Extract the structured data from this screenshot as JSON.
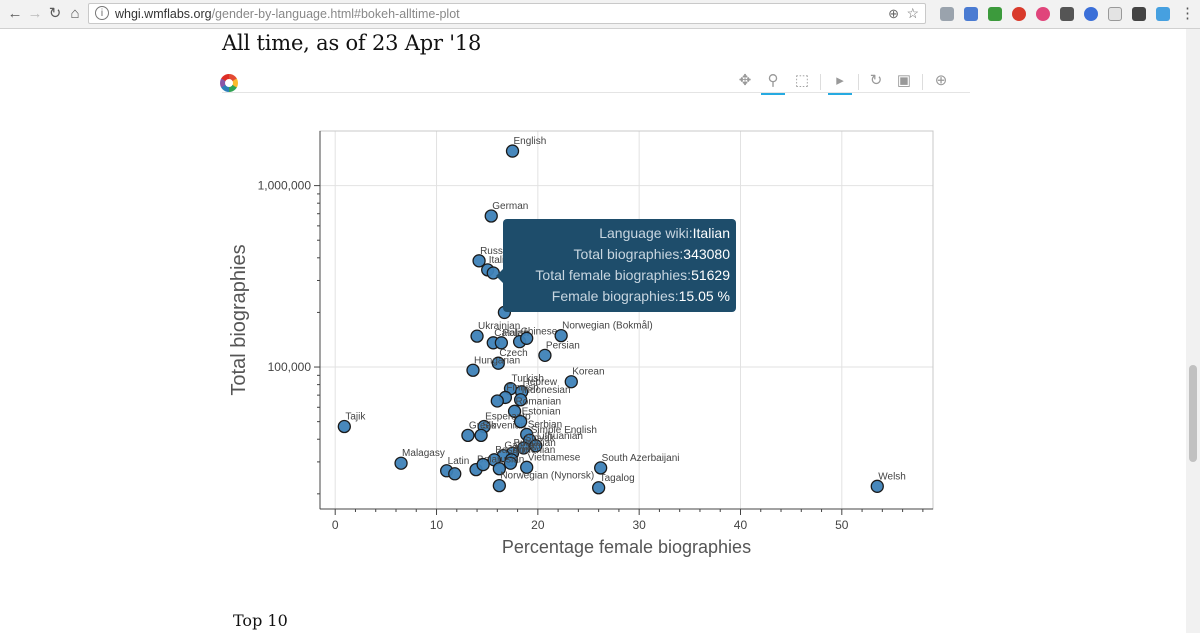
{
  "browser": {
    "url_host": "whgi.wmflabs.org",
    "url_rest": "/gender-by-language.html#bokeh-alltime-plot"
  },
  "page": {
    "title": "All time, as of 23 Apr '18",
    "next_heading": "Top 10"
  },
  "tooltip": {
    "rows": [
      {
        "label": "Language wiki:",
        "value": "Italian"
      },
      {
        "label": "Total biographies:",
        "value": "343080"
      },
      {
        "label": "Total female biographies:",
        "value": "51629"
      },
      {
        "label": "Female biographies:",
        "value": "15.05 %"
      }
    ]
  },
  "chart_data": {
    "type": "scatter",
    "xlabel": "Percentage female biographies",
    "ylabel": "Total biographies",
    "xlim": [
      -1.5,
      59
    ],
    "ylim": [
      16500,
      2000000
    ],
    "y_scale": "log",
    "x_ticks": [
      0,
      10,
      20,
      30,
      40,
      50
    ],
    "y_ticks": [
      100000,
      1000000
    ],
    "y_tick_labels": [
      "100,000",
      "1,000,000"
    ],
    "grid": true,
    "point_color": "#3e82b8",
    "points": [
      {
        "label": "English",
        "x": 17.5,
        "y": 1550000
      },
      {
        "label": "German",
        "x": 15.4,
        "y": 680000
      },
      {
        "label": "Russian",
        "x": 14.2,
        "y": 385000
      },
      {
        "label": "Italian",
        "x": 15.05,
        "y": 343080
      },
      {
        "label": "",
        "x": 15.6,
        "y": 330000
      },
      {
        "label": "",
        "x": 16.7,
        "y": 200000
      },
      {
        "label": "Ukrainian",
        "x": 14.0,
        "y": 148000
      },
      {
        "label": "Catalan",
        "x": 15.6,
        "y": 136000
      },
      {
        "label": "Polish",
        "x": 16.4,
        "y": 136000
      },
      {
        "label": "Chinese",
        "x": 18.2,
        "y": 138000
      },
      {
        "label": "",
        "x": 18.9,
        "y": 144000
      },
      {
        "label": "Norwegian (Bokmål)",
        "x": 22.3,
        "y": 149000
      },
      {
        "label": "Persian",
        "x": 20.7,
        "y": 116000
      },
      {
        "label": "Czech",
        "x": 16.1,
        "y": 105000
      },
      {
        "label": "Hungarian",
        "x": 13.6,
        "y": 96000
      },
      {
        "label": "Korean",
        "x": 23.3,
        "y": 83000
      },
      {
        "label": "Turkish",
        "x": 17.3,
        "y": 76000
      },
      {
        "label": "Hebrew",
        "x": 18.4,
        "y": 73000
      },
      {
        "label": "Finnish",
        "x": 16.8,
        "y": 68000
      },
      {
        "label": "",
        "x": 16.0,
        "y": 65000
      },
      {
        "label": "Indonesian",
        "x": 18.3,
        "y": 66000
      },
      {
        "label": "Romanian",
        "x": 17.7,
        "y": 57000
      },
      {
        "label": "Esperanto",
        "x": 14.7,
        "y": 47000
      },
      {
        "label": "Slovenian",
        "x": 14.4,
        "y": 42000
      },
      {
        "label": "Greek",
        "x": 13.1,
        "y": 42000
      },
      {
        "label": "Estonian",
        "x": 18.3,
        "y": 50000
      },
      {
        "label": "Serbian",
        "x": 18.9,
        "y": 42500
      },
      {
        "label": "Simple English",
        "x": 19.2,
        "y": 39500
      },
      {
        "label": "Lithuanian",
        "x": 19.8,
        "y": 36800
      },
      {
        "label": "Slovak",
        "x": 18.6,
        "y": 35800
      },
      {
        "label": "Bulgarian",
        "x": 17.5,
        "y": 33500
      },
      {
        "label": "Galician",
        "x": 16.6,
        "y": 32500
      },
      {
        "label": "Armenian",
        "x": 17.4,
        "y": 30800
      },
      {
        "label": "Basque",
        "x": 15.7,
        "y": 30800
      },
      {
        "label": "Vietnamese",
        "x": 18.9,
        "y": 28000
      },
      {
        "label": "",
        "x": 17.3,
        "y": 29500
      },
      {
        "label": "Belarusian",
        "x": 13.9,
        "y": 27200
      },
      {
        "label": "",
        "x": 14.6,
        "y": 29000
      },
      {
        "label": "",
        "x": 16.2,
        "y": 27500
      },
      {
        "label": "Latin",
        "x": 11.0,
        "y": 26800
      },
      {
        "label": "",
        "x": 11.8,
        "y": 25800
      },
      {
        "label": "Malagasy",
        "x": 6.5,
        "y": 29500
      },
      {
        "label": "Tajik",
        "x": 0.9,
        "y": 47000
      },
      {
        "label": "South Azerbaijani",
        "x": 26.2,
        "y": 27800
      },
      {
        "label": "Norwegian (Nynorsk)",
        "x": 16.2,
        "y": 22200
      },
      {
        "label": "Tagalog",
        "x": 26.0,
        "y": 21600
      },
      {
        "label": "Welsh",
        "x": 53.5,
        "y": 22000
      }
    ]
  }
}
